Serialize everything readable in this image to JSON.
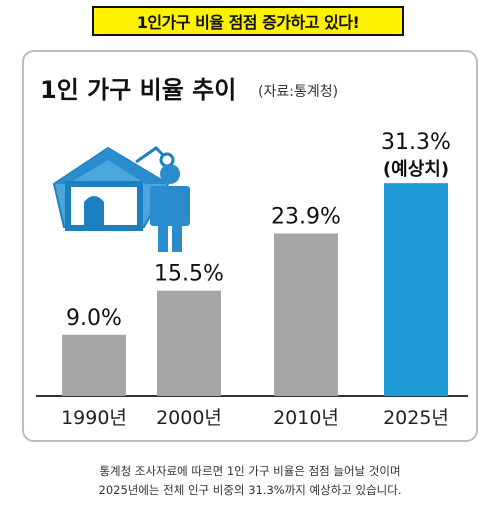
{
  "headline": "1인가구 비율 점점 증가하고 있다!",
  "chart_data": {
    "type": "bar",
    "title": "1인 가구 비율 추이",
    "source": "(자료:통계청)",
    "categories": [
      "1990년",
      "2000년",
      "2010년",
      "2025년"
    ],
    "values": [
      9.0,
      15.5,
      23.9,
      31.3
    ],
    "value_labels": [
      "9.0%",
      "15.5%",
      "23.9%",
      "31.3%"
    ],
    "annotations": [
      {
        "category": "2025년",
        "text": "(예상치)"
      }
    ],
    "colors": [
      "#a6a6a7",
      "#a6a6a7",
      "#a6a6a7",
      "#1e9ad6"
    ],
    "xlabel": "",
    "ylabel": "",
    "ylim": [
      0,
      35
    ],
    "grid": false
  },
  "caption": {
    "line1": "통계청 조사자료에 따르면 1인 가구 비율은 점점 늘어날 것이며",
    "line2": "2025년에는 전체 인구 비중의 31.3%까지 예상하고 있습니다."
  },
  "icons": [
    "house-person-icon"
  ]
}
